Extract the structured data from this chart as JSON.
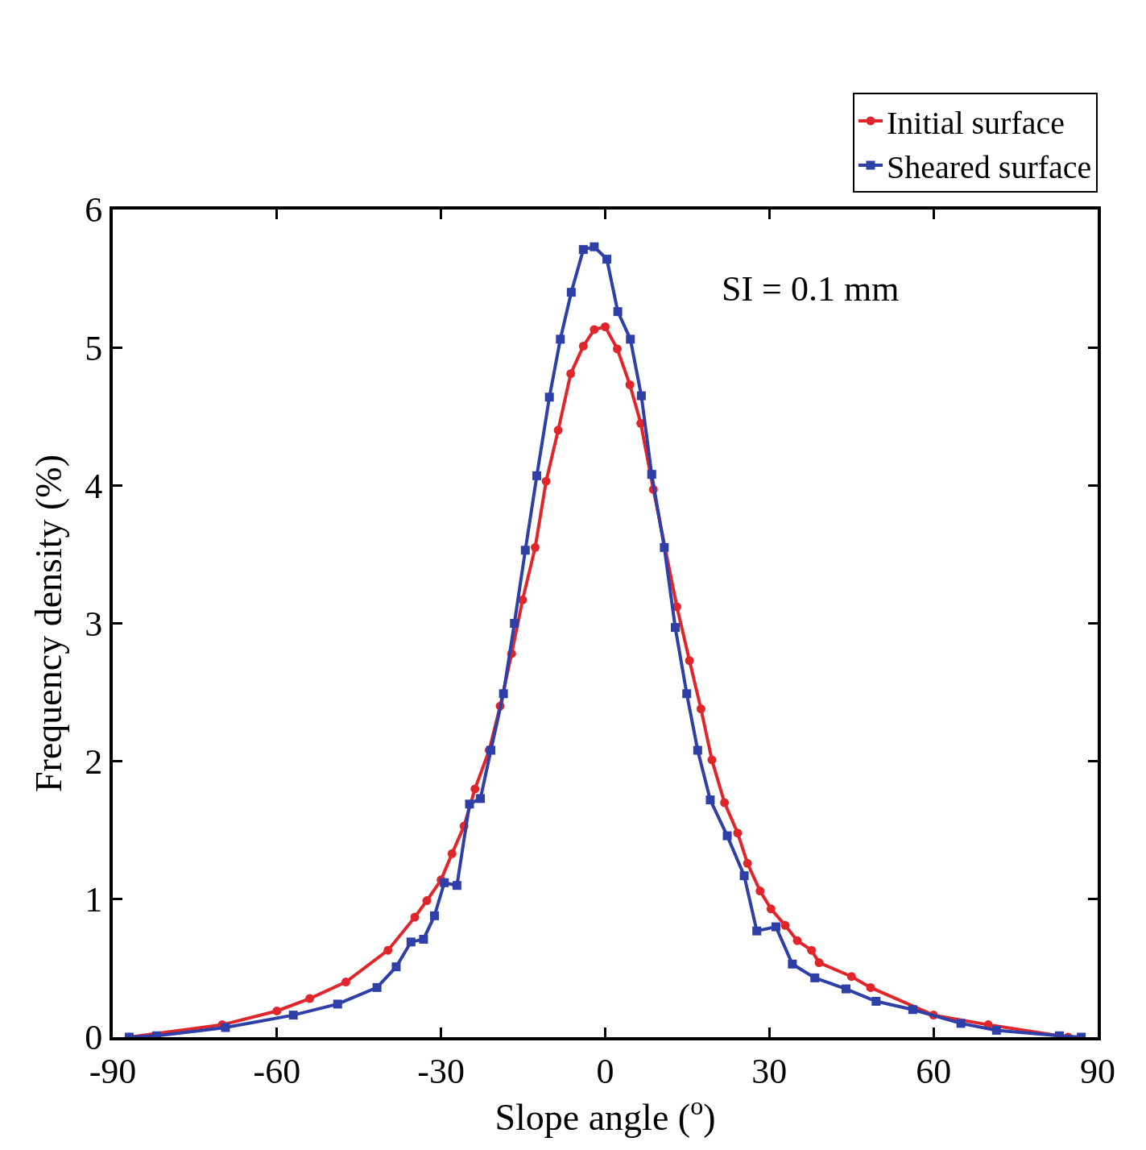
{
  "chart_data": {
    "type": "line",
    "xlabel": "Slope angle ($^{o}$)",
    "ylabel": "Frequency density (%)",
    "xlim": [
      -90,
      90
    ],
    "xticks": [
      -90,
      -60,
      -30,
      0,
      30,
      60,
      90
    ],
    "ylim": [
      0,
      6
    ],
    "yticks": [
      0,
      1,
      2,
      3,
      4,
      5,
      6
    ],
    "legend": "top right",
    "annotations": [
      "SI = 0.1 mm"
    ],
    "series": [
      {
        "name": "Initial surface",
        "color": "#e0262b",
        "marker": "circle",
        "x": [
          -87,
          -70,
          -60,
          -54,
          -47.4,
          -39.7,
          -34.8,
          -32.6,
          -30,
          -28,
          -25.8,
          -23.8,
          -21.2,
          -19.2,
          -17.1,
          -15.1,
          -12.8,
          -10.8,
          -8.6,
          -6.3,
          -4,
          -2,
          0,
          2.2,
          4.5,
          6.5,
          8.8,
          13.1,
          15.4,
          17.5,
          19.5,
          21.8,
          24.2,
          26,
          28.3,
          30.3,
          32.9,
          35.1,
          37.7,
          39.1,
          45,
          48.5,
          60,
          70,
          84.6
        ],
        "values": [
          0,
          0.09,
          0.19,
          0.28,
          0.4,
          0.63,
          0.87,
          0.99,
          1.14,
          1.33,
          1.53,
          1.8,
          2.08,
          2.4,
          2.78,
          3.17,
          3.55,
          4.03,
          4.4,
          4.81,
          5.01,
          5.13,
          5.15,
          4.99,
          4.73,
          4.45,
          3.97,
          3.12,
          2.73,
          2.38,
          2.01,
          1.7,
          1.48,
          1.26,
          1.06,
          0.93,
          0.81,
          0.7,
          0.63,
          0.54,
          0.44,
          0.36,
          0.16,
          0.09,
          0
        ]
      },
      {
        "name": "Sheared surface",
        "color": "#2f3fa8",
        "marker": "square",
        "x": [
          -87,
          -82,
          -69.4,
          -57,
          -48.9,
          -41.7,
          -38.2,
          -35.5,
          -33.2,
          -31.2,
          -29.4,
          -27.1,
          -24.8,
          -22.8,
          -20.9,
          -18.6,
          -16.6,
          -14.6,
          -12.5,
          -10.2,
          -8.2,
          -6.2,
          -4,
          -2,
          0.3,
          2.3,
          4.6,
          6.6,
          8.5,
          10.8,
          12.8,
          14.9,
          16.9,
          19.2,
          22.3,
          25.4,
          27.7,
          31.2,
          34.2,
          38.3,
          44,
          49.5,
          56.2,
          65,
          71.5,
          83,
          87
        ],
        "values": [
          0,
          0.01,
          0.07,
          0.16,
          0.24,
          0.36,
          0.51,
          0.69,
          0.71,
          0.88,
          1.12,
          1.1,
          1.69,
          1.73,
          2.08,
          2.49,
          3,
          3.53,
          4.07,
          4.64,
          5.06,
          5.4,
          5.71,
          5.73,
          5.64,
          5.26,
          5.06,
          4.65,
          4.08,
          3.55,
          2.97,
          2.49,
          2.08,
          1.72,
          1.46,
          1.17,
          0.77,
          0.8,
          0.53,
          0.43,
          0.35,
          0.26,
          0.2,
          0.1,
          0.05,
          0.01,
          0
        ]
      }
    ]
  }
}
